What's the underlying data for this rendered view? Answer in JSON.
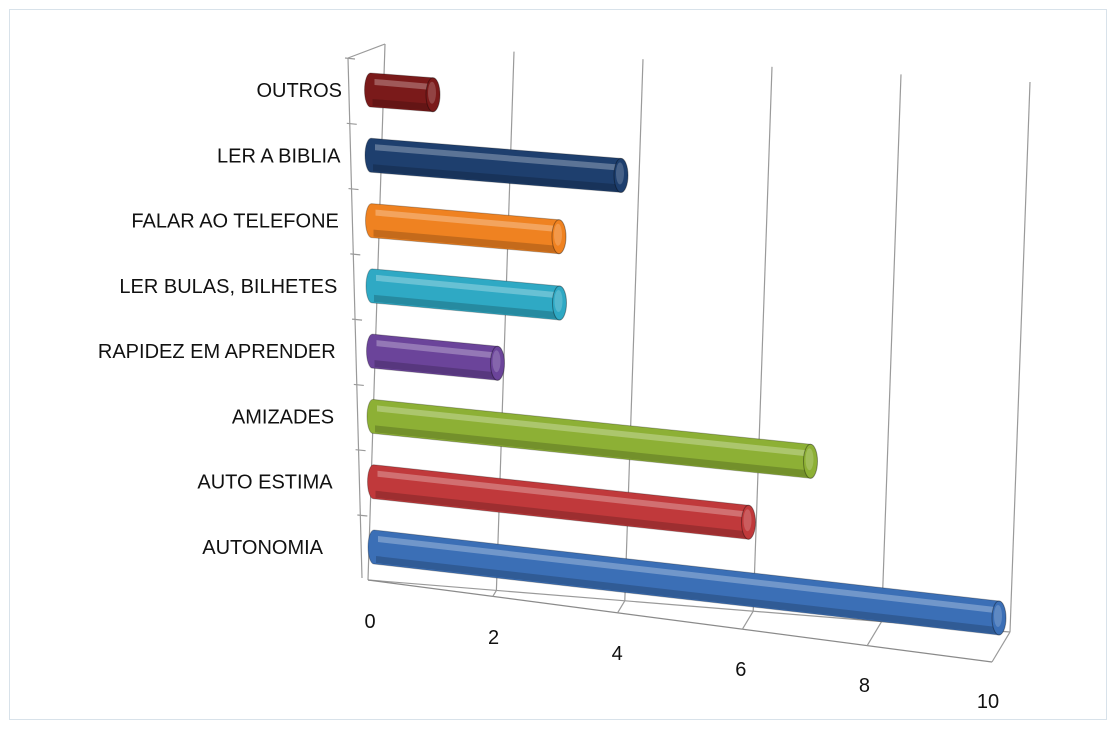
{
  "chart_data": {
    "type": "bar",
    "orientation": "horizontal",
    "style": "3d-cylinder",
    "categories": [
      "AUTONOMIA",
      "AUTO ESTIMA",
      "AMIZADES",
      "RAPIDEZ EM APRENDER",
      "LER BULAS, BILHETES",
      "FALAR AO TELEFONE",
      "LER A BIBLIA",
      "OUTROS"
    ],
    "values": [
      10,
      6,
      7,
      2,
      3,
      3,
      4,
      1
    ],
    "colors": [
      "#3b6fb6",
      "#c0393b",
      "#8db035",
      "#6b449a",
      "#2fa9c4",
      "#ef8221",
      "#1e3f6e",
      "#7a1a1a"
    ],
    "xlim": [
      0,
      10
    ],
    "x_ticks": [
      "0",
      "2",
      "4",
      "6",
      "8",
      "10"
    ],
    "grid": true,
    "legend": "none",
    "title": "",
    "xlabel": "",
    "ylabel": ""
  }
}
